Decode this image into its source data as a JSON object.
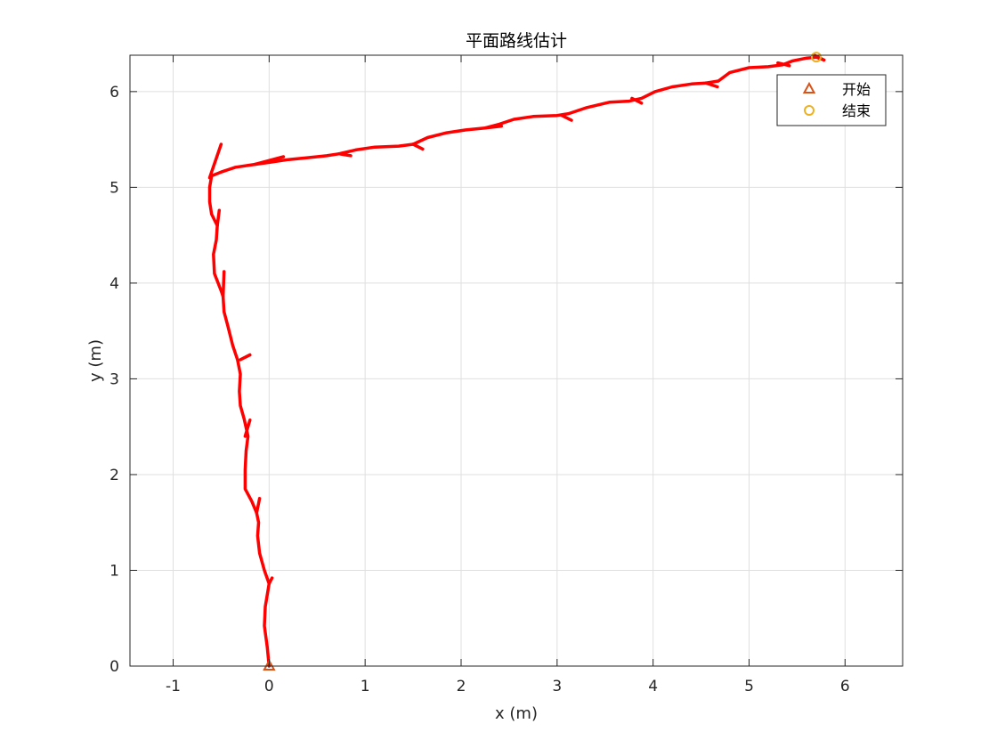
{
  "chart_data": {
    "type": "line",
    "title": "平面路线估计",
    "xlabel": "x (m)",
    "ylabel": "y (m)",
    "xlim": [
      -1.45,
      6.6
    ],
    "ylim": [
      0,
      6.38
    ],
    "xticks": [
      -1,
      0,
      1,
      2,
      3,
      4,
      5,
      6
    ],
    "yticks": [
      0,
      1,
      2,
      3,
      4,
      5,
      6
    ],
    "xtick_labels": [
      "-1",
      "0",
      "1",
      "2",
      "3",
      "4",
      "5",
      "6"
    ],
    "ytick_labels": [
      "0",
      "1",
      "2",
      "3",
      "4",
      "5",
      "6"
    ],
    "grid": true,
    "legend_position": "top-right",
    "series": [
      {
        "color": "#ff0000",
        "points": [
          [
            0.0,
            0.0
          ],
          [
            -0.02,
            0.2
          ],
          [
            -0.05,
            0.42
          ],
          [
            -0.04,
            0.62
          ],
          [
            0.0,
            0.86
          ],
          [
            -0.05,
            1.0
          ],
          [
            -0.1,
            1.18
          ],
          [
            -0.12,
            1.36
          ],
          [
            -0.11,
            1.5
          ],
          [
            -0.13,
            1.6
          ],
          [
            -0.18,
            1.72
          ],
          [
            -0.25,
            1.85
          ],
          [
            -0.25,
            2.05
          ],
          [
            -0.24,
            2.25
          ],
          [
            -0.22,
            2.4
          ],
          [
            -0.26,
            2.58
          ],
          [
            -0.3,
            2.72
          ],
          [
            -0.31,
            2.87
          ],
          [
            -0.3,
            3.05
          ],
          [
            -0.33,
            3.2
          ],
          [
            -0.38,
            3.35
          ],
          [
            -0.43,
            3.55
          ],
          [
            -0.47,
            3.7
          ],
          [
            -0.48,
            3.86
          ],
          [
            -0.5,
            3.92
          ],
          [
            -0.57,
            4.1
          ],
          [
            -0.58,
            4.3
          ],
          [
            -0.55,
            4.45
          ],
          [
            -0.54,
            4.6
          ],
          [
            -0.6,
            4.72
          ],
          [
            -0.62,
            4.85
          ],
          [
            -0.62,
            5.0
          ],
          [
            -0.6,
            5.12
          ],
          [
            -0.5,
            5.16
          ],
          [
            -0.35,
            5.21
          ],
          [
            -0.15,
            5.24
          ],
          [
            0.0,
            5.26
          ],
          [
            0.2,
            5.29
          ],
          [
            0.4,
            5.31
          ],
          [
            0.6,
            5.33
          ],
          [
            0.73,
            5.35
          ],
          [
            0.9,
            5.39
          ],
          [
            1.1,
            5.42
          ],
          [
            1.35,
            5.43
          ],
          [
            1.5,
            5.45
          ],
          [
            1.65,
            5.52
          ],
          [
            1.85,
            5.57
          ],
          [
            2.05,
            5.6
          ],
          [
            2.25,
            5.62
          ],
          [
            2.4,
            5.66
          ],
          [
            2.55,
            5.71
          ],
          [
            2.75,
            5.74
          ],
          [
            3.0,
            5.75
          ],
          [
            3.12,
            5.77
          ],
          [
            3.3,
            5.83
          ],
          [
            3.55,
            5.89
          ],
          [
            3.75,
            5.9
          ],
          [
            3.88,
            5.93
          ],
          [
            4.02,
            6.0
          ],
          [
            4.2,
            6.05
          ],
          [
            4.4,
            6.08
          ],
          [
            4.55,
            6.09
          ],
          [
            4.68,
            6.11
          ],
          [
            4.8,
            6.2
          ],
          [
            5.0,
            6.25
          ],
          [
            5.2,
            6.26
          ],
          [
            5.35,
            6.28
          ],
          [
            5.45,
            6.32
          ],
          [
            5.6,
            6.35
          ],
          [
            5.7,
            6.36
          ],
          [
            5.78,
            6.33
          ]
        ]
      }
    ],
    "branches": [
      [
        [
          0.0,
          0.86
        ],
        [
          0.03,
          0.92
        ]
      ],
      [
        [
          -0.13,
          1.6
        ],
        [
          -0.1,
          1.75
        ]
      ],
      [
        [
          -0.25,
          2.4
        ],
        [
          -0.2,
          2.57
        ]
      ],
      [
        [
          -0.3,
          3.2
        ],
        [
          -0.2,
          3.25
        ]
      ],
      [
        [
          -0.48,
          3.86
        ],
        [
          -0.47,
          4.12
        ]
      ],
      [
        [
          -0.54,
          4.6
        ],
        [
          -0.52,
          4.76
        ]
      ],
      [
        [
          -0.62,
          5.1
        ],
        [
          -0.5,
          5.45
        ]
      ],
      [
        [
          -0.15,
          5.24
        ],
        [
          0.15,
          5.32
        ]
      ],
      [
        [
          0.73,
          5.35
        ],
        [
          0.85,
          5.33
        ]
      ],
      [
        [
          1.5,
          5.45
        ],
        [
          1.6,
          5.4
        ]
      ],
      [
        [
          2.25,
          5.62
        ],
        [
          2.42,
          5.64
        ]
      ],
      [
        [
          3.05,
          5.75
        ],
        [
          3.15,
          5.7
        ]
      ],
      [
        [
          3.78,
          5.93
        ],
        [
          3.88,
          5.88
        ]
      ],
      [
        [
          4.55,
          6.09
        ],
        [
          4.67,
          6.05
        ]
      ],
      [
        [
          5.3,
          6.3
        ],
        [
          5.42,
          6.27
        ]
      ],
      [
        [
          5.68,
          6.38
        ],
        [
          5.78,
          6.33
        ]
      ]
    ],
    "markers": [
      {
        "label": "开始",
        "shape": "triangle",
        "color": "#d95319",
        "x": 0.0,
        "y": 0.0
      },
      {
        "label": "结束",
        "shape": "circle",
        "color": "#edb120",
        "x": 5.7,
        "y": 6.36
      }
    ]
  }
}
